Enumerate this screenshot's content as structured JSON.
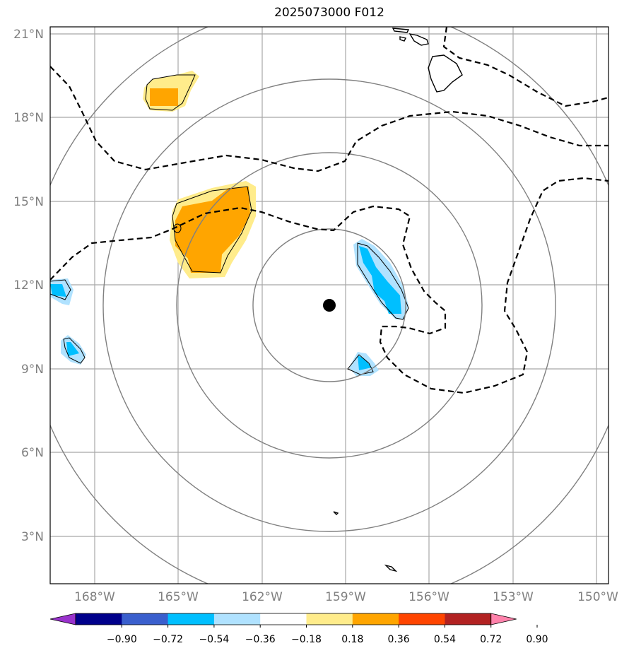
{
  "title": "2025073000 F012",
  "map": {
    "lat_labels": [
      "21°N",
      "18°N",
      "15°N",
      "12°N",
      "9°N",
      "6°N",
      "3°N"
    ],
    "lon_labels": [
      "168°W",
      "165°W",
      "162°W",
      "159°W",
      "156°W",
      "153°W",
      "150°W"
    ],
    "center_marker": "storm-center-dot",
    "colors": {
      "frame": "#000000",
      "grid": "#999999",
      "range_rings": "#808080",
      "contour": "#000000"
    }
  },
  "colorbar": {
    "ticks": [
      "−0.90",
      "−0.72",
      "−0.54",
      "−0.36",
      "−0.18",
      "0.18",
      "0.36",
      "0.54",
      "0.72",
      "0.90"
    ],
    "colors": [
      "#9932cc",
      "#00008b",
      "#3a5fcd",
      "#00bfff",
      "#b0e2ff",
      "#ffffff",
      "#ffec8b",
      "#ffa500",
      "#ff4500",
      "#b22222",
      "#ff82ab"
    ]
  }
}
